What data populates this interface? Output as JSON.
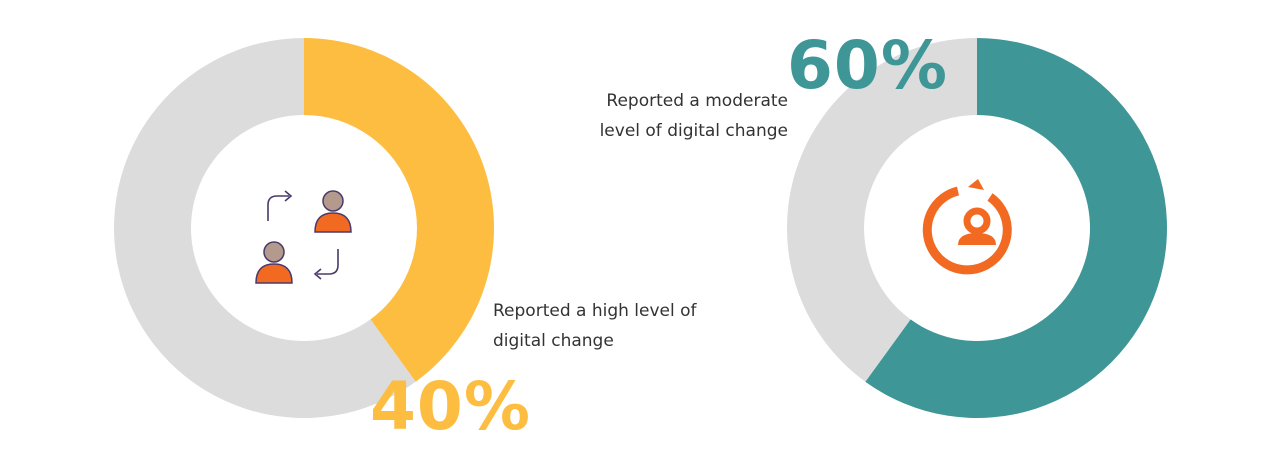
{
  "chart_data": [
    {
      "type": "pie",
      "slices": [
        {
          "value": 40,
          "color": "#FDBD41",
          "highlight": true
        },
        {
          "value": 60,
          "color": "#DCDCDC",
          "highlight": false
        }
      ],
      "percent_label": "40%",
      "label": "Reported a high level of\ndigital change",
      "accent": "#FDBD41",
      "center_icon": "people-exchange-icon"
    },
    {
      "type": "pie",
      "slices": [
        {
          "value": 60,
          "color": "#3E9697",
          "highlight": true
        },
        {
          "value": 40,
          "color": "#DCDCDC",
          "highlight": false
        }
      ],
      "percent_label": "60%",
      "label": "Reported a moderate\nlevel of  digital change",
      "accent": "#3E9697",
      "center_icon": "person-refresh-icon"
    }
  ]
}
